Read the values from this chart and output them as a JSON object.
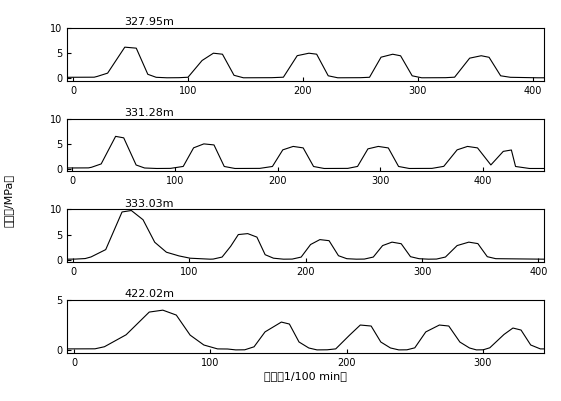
{
  "subplots": [
    {
      "label": "327.95m",
      "xlim": [
        -5,
        410
      ],
      "ylim": [
        -0.5,
        10
      ],
      "yticks": [
        0,
        5,
        10
      ],
      "xticks": [
        0,
        100,
        200,
        300,
        400
      ],
      "segments": [
        [
          0,
          0.2
        ],
        [
          18,
          0.2
        ],
        [
          20,
          0.3
        ],
        [
          30,
          1.0
        ],
        [
          45,
          6.2
        ],
        [
          55,
          6.0
        ],
        [
          65,
          0.8
        ],
        [
          72,
          0.2
        ],
        [
          80,
          0.1
        ],
        [
          90,
          0.1
        ],
        [
          100,
          0.2
        ],
        [
          112,
          3.5
        ],
        [
          122,
          5.0
        ],
        [
          130,
          4.8
        ],
        [
          140,
          0.6
        ],
        [
          148,
          0.1
        ],
        [
          155,
          0.1
        ],
        [
          170,
          0.1
        ],
        [
          183,
          0.2
        ],
        [
          195,
          4.5
        ],
        [
          205,
          5.0
        ],
        [
          212,
          4.8
        ],
        [
          222,
          0.5
        ],
        [
          230,
          0.1
        ],
        [
          238,
          0.1
        ],
        [
          248,
          0.1
        ],
        [
          258,
          0.2
        ],
        [
          268,
          4.2
        ],
        [
          278,
          4.8
        ],
        [
          285,
          4.5
        ],
        [
          295,
          0.5
        ],
        [
          303,
          0.1
        ],
        [
          310,
          0.1
        ],
        [
          322,
          0.1
        ],
        [
          332,
          0.2
        ],
        [
          345,
          4.0
        ],
        [
          355,
          4.5
        ],
        [
          362,
          4.2
        ],
        [
          372,
          0.5
        ],
        [
          380,
          0.2
        ],
        [
          400,
          0.1
        ]
      ]
    },
    {
      "label": "331.28m",
      "xlim": [
        -5,
        460
      ],
      "ylim": [
        -0.5,
        10
      ],
      "yticks": [
        0,
        5,
        10
      ],
      "xticks": [
        0,
        100,
        200,
        300,
        400
      ],
      "segments": [
        [
          0,
          0.2
        ],
        [
          15,
          0.2
        ],
        [
          18,
          0.3
        ],
        [
          28,
          1.0
        ],
        [
          42,
          6.5
        ],
        [
          50,
          6.2
        ],
        [
          62,
          0.8
        ],
        [
          70,
          0.2
        ],
        [
          80,
          0.1
        ],
        [
          95,
          0.1
        ],
        [
          108,
          0.5
        ],
        [
          118,
          4.2
        ],
        [
          128,
          5.0
        ],
        [
          138,
          4.8
        ],
        [
          148,
          0.5
        ],
        [
          158,
          0.1
        ],
        [
          168,
          0.1
        ],
        [
          182,
          0.1
        ],
        [
          195,
          0.5
        ],
        [
          205,
          3.8
        ],
        [
          215,
          4.5
        ],
        [
          225,
          4.2
        ],
        [
          235,
          0.5
        ],
        [
          245,
          0.1
        ],
        [
          255,
          0.1
        ],
        [
          268,
          0.1
        ],
        [
          278,
          0.5
        ],
        [
          288,
          4.0
        ],
        [
          298,
          4.5
        ],
        [
          308,
          4.2
        ],
        [
          318,
          0.5
        ],
        [
          328,
          0.1
        ],
        [
          338,
          0.1
        ],
        [
          350,
          0.1
        ],
        [
          362,
          0.5
        ],
        [
          375,
          3.8
        ],
        [
          385,
          4.5
        ],
        [
          395,
          4.2
        ],
        [
          408,
          0.8
        ],
        [
          420,
          3.5
        ],
        [
          428,
          3.8
        ],
        [
          432,
          0.5
        ],
        [
          445,
          0.1
        ]
      ]
    },
    {
      "label": "333.03m",
      "xlim": [
        -5,
        405
      ],
      "ylim": [
        -0.5,
        10
      ],
      "yticks": [
        0,
        5,
        10
      ],
      "xticks": [
        0,
        100,
        200,
        300,
        400
      ],
      "segments": [
        [
          0,
          0.1
        ],
        [
          10,
          0.2
        ],
        [
          15,
          0.5
        ],
        [
          28,
          2.0
        ],
        [
          42,
          9.5
        ],
        [
          50,
          9.8
        ],
        [
          60,
          8.0
        ],
        [
          70,
          3.5
        ],
        [
          80,
          1.5
        ],
        [
          90,
          0.8
        ],
        [
          100,
          0.3
        ],
        [
          108,
          0.2
        ],
        [
          115,
          0.1
        ],
        [
          120,
          0.1
        ],
        [
          128,
          0.5
        ],
        [
          135,
          2.5
        ],
        [
          142,
          5.0
        ],
        [
          150,
          5.2
        ],
        [
          158,
          4.5
        ],
        [
          165,
          1.0
        ],
        [
          172,
          0.3
        ],
        [
          180,
          0.1
        ],
        [
          188,
          0.1
        ],
        [
          196,
          0.5
        ],
        [
          204,
          3.0
        ],
        [
          212,
          4.0
        ],
        [
          220,
          3.8
        ],
        [
          228,
          0.8
        ],
        [
          235,
          0.2
        ],
        [
          242,
          0.1
        ],
        [
          250,
          0.1
        ],
        [
          258,
          0.5
        ],
        [
          266,
          2.8
        ],
        [
          274,
          3.5
        ],
        [
          282,
          3.2
        ],
        [
          290,
          0.6
        ],
        [
          297,
          0.2
        ],
        [
          304,
          0.1
        ],
        [
          312,
          0.1
        ],
        [
          320,
          0.5
        ],
        [
          330,
          2.8
        ],
        [
          340,
          3.5
        ],
        [
          348,
          3.2
        ],
        [
          356,
          0.6
        ],
        [
          363,
          0.2
        ],
        [
          400,
          0.1
        ]
      ]
    },
    {
      "label": "422.02m",
      "xlim": [
        -5,
        345
      ],
      "ylim": [
        -0.3,
        5
      ],
      "yticks": [
        0,
        5
      ],
      "xticks": [
        0,
        100,
        200,
        300
      ],
      "segments": [
        [
          0,
          0.1
        ],
        [
          15,
          0.1
        ],
        [
          22,
          0.3
        ],
        [
          38,
          1.5
        ],
        [
          55,
          3.8
        ],
        [
          65,
          4.0
        ],
        [
          75,
          3.5
        ],
        [
          85,
          1.5
        ],
        [
          95,
          0.5
        ],
        [
          105,
          0.1
        ],
        [
          112,
          0.1
        ],
        [
          118,
          0.0
        ],
        [
          125,
          0.0
        ],
        [
          132,
          0.3
        ],
        [
          140,
          1.8
        ],
        [
          152,
          2.8
        ],
        [
          158,
          2.6
        ],
        [
          165,
          0.8
        ],
        [
          172,
          0.2
        ],
        [
          178,
          0.0
        ],
        [
          185,
          0.0
        ],
        [
          192,
          0.1
        ],
        [
          200,
          1.2
        ],
        [
          210,
          2.5
        ],
        [
          218,
          2.4
        ],
        [
          225,
          0.8
        ],
        [
          232,
          0.2
        ],
        [
          238,
          0.0
        ],
        [
          244,
          0.0
        ],
        [
          250,
          0.2
        ],
        [
          258,
          1.8
        ],
        [
          268,
          2.5
        ],
        [
          275,
          2.4
        ],
        [
          283,
          0.8
        ],
        [
          290,
          0.2
        ],
        [
          295,
          0.0
        ],
        [
          300,
          0.0
        ],
        [
          305,
          0.2
        ],
        [
          315,
          1.5
        ],
        [
          322,
          2.2
        ],
        [
          328,
          2.0
        ],
        [
          335,
          0.5
        ],
        [
          342,
          0.1
        ]
      ]
    }
  ],
  "ylabel": "压力（/MPa）",
  "xlabel": "时间（1/100 min）",
  "linecolor": "#000000",
  "linewidth": 0.8,
  "background": "#ffffff"
}
